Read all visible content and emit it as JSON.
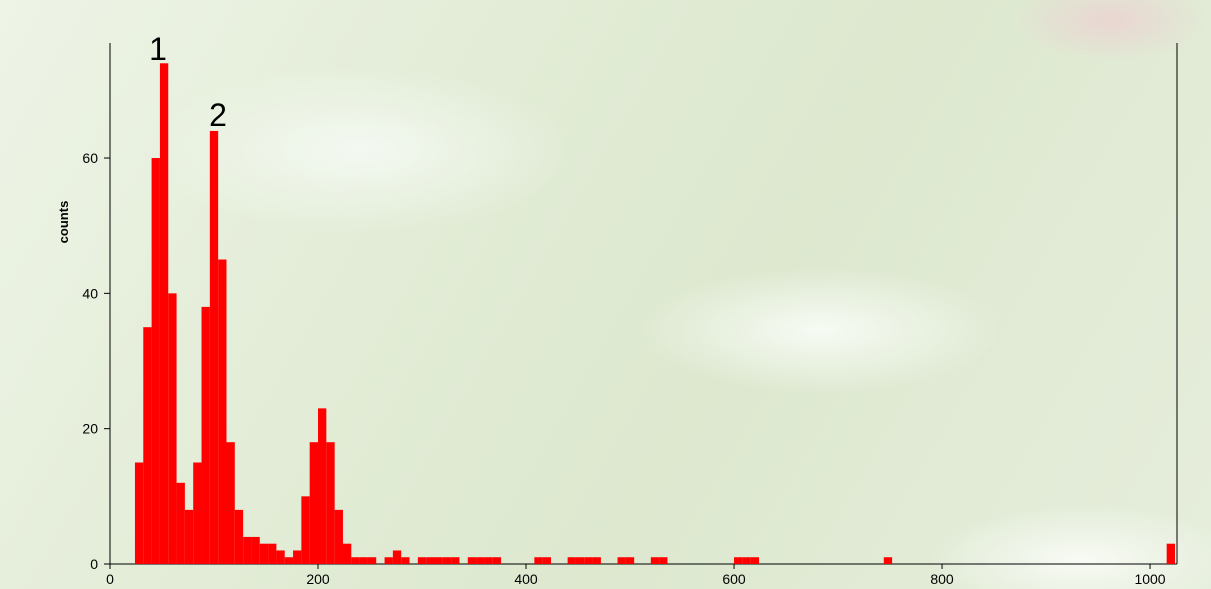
{
  "chart_data": {
    "type": "histogram",
    "y_label": "counts",
    "annotations": [
      "1",
      "2"
    ],
    "color": "#ff0000",
    "bins": [
      24,
      32,
      40,
      48,
      56,
      64,
      72,
      80,
      88,
      96,
      104,
      112,
      120,
      128,
      136,
      144,
      152,
      160,
      168,
      176,
      184,
      192,
      200,
      208,
      216,
      224,
      232,
      240,
      248,
      256,
      264,
      272,
      280,
      288,
      296,
      304,
      312,
      320,
      328,
      336,
      344,
      352,
      360,
      368,
      376,
      384,
      392,
      400,
      408,
      416,
      424,
      432,
      440,
      448,
      456,
      464,
      472,
      480,
      488,
      496,
      504,
      512,
      520,
      528,
      536,
      544,
      552,
      560,
      568,
      576,
      584,
      592,
      600,
      608,
      616,
      624,
      632,
      640,
      648,
      656,
      664,
      672,
      680,
      688,
      696,
      704,
      712,
      720,
      728,
      736,
      744,
      752,
      760,
      768,
      776,
      784,
      792,
      800,
      808,
      816,
      824,
      832,
      840,
      848,
      856,
      864,
      872,
      880,
      888,
      896,
      904,
      912,
      920,
      928,
      936,
      944,
      952,
      960,
      968,
      976,
      984,
      992,
      1000,
      1008,
      1016,
      1024
    ],
    "counts": [
      15,
      35,
      60,
      74,
      40,
      12,
      8,
      15,
      38,
      64,
      45,
      18,
      8,
      4,
      4,
      3,
      3,
      2,
      1,
      2,
      10,
      18,
      23,
      18,
      8,
      3,
      1,
      1,
      1,
      0,
      1,
      2,
      1,
      0,
      1,
      1,
      1,
      1,
      1,
      0,
      1,
      1,
      1,
      1,
      0,
      0,
      0,
      0,
      1,
      1,
      0,
      0,
      1,
      1,
      1,
      1,
      0,
      0,
      1,
      1,
      0,
      0,
      1,
      1,
      0,
      0,
      0,
      0,
      0,
      0,
      0,
      0,
      1,
      1,
      1,
      0,
      0,
      0,
      0,
      0,
      0,
      0,
      0,
      0,
      0,
      0,
      0,
      0,
      0,
      0,
      1,
      0,
      0,
      0,
      0,
      0,
      0,
      0,
      0,
      0,
      0,
      0,
      0,
      0,
      0,
      0,
      0,
      0,
      0,
      0,
      0,
      0,
      0,
      0,
      0,
      0,
      0,
      0,
      0,
      0,
      0,
      0,
      0,
      0,
      3
    ],
    "xlim": [
      0,
      1024
    ],
    "xticks": [
      0,
      200,
      400,
      600,
      800,
      1000
    ],
    "ylim": [
      0,
      77
    ],
    "yticks": [
      0,
      20,
      40,
      60
    ]
  }
}
